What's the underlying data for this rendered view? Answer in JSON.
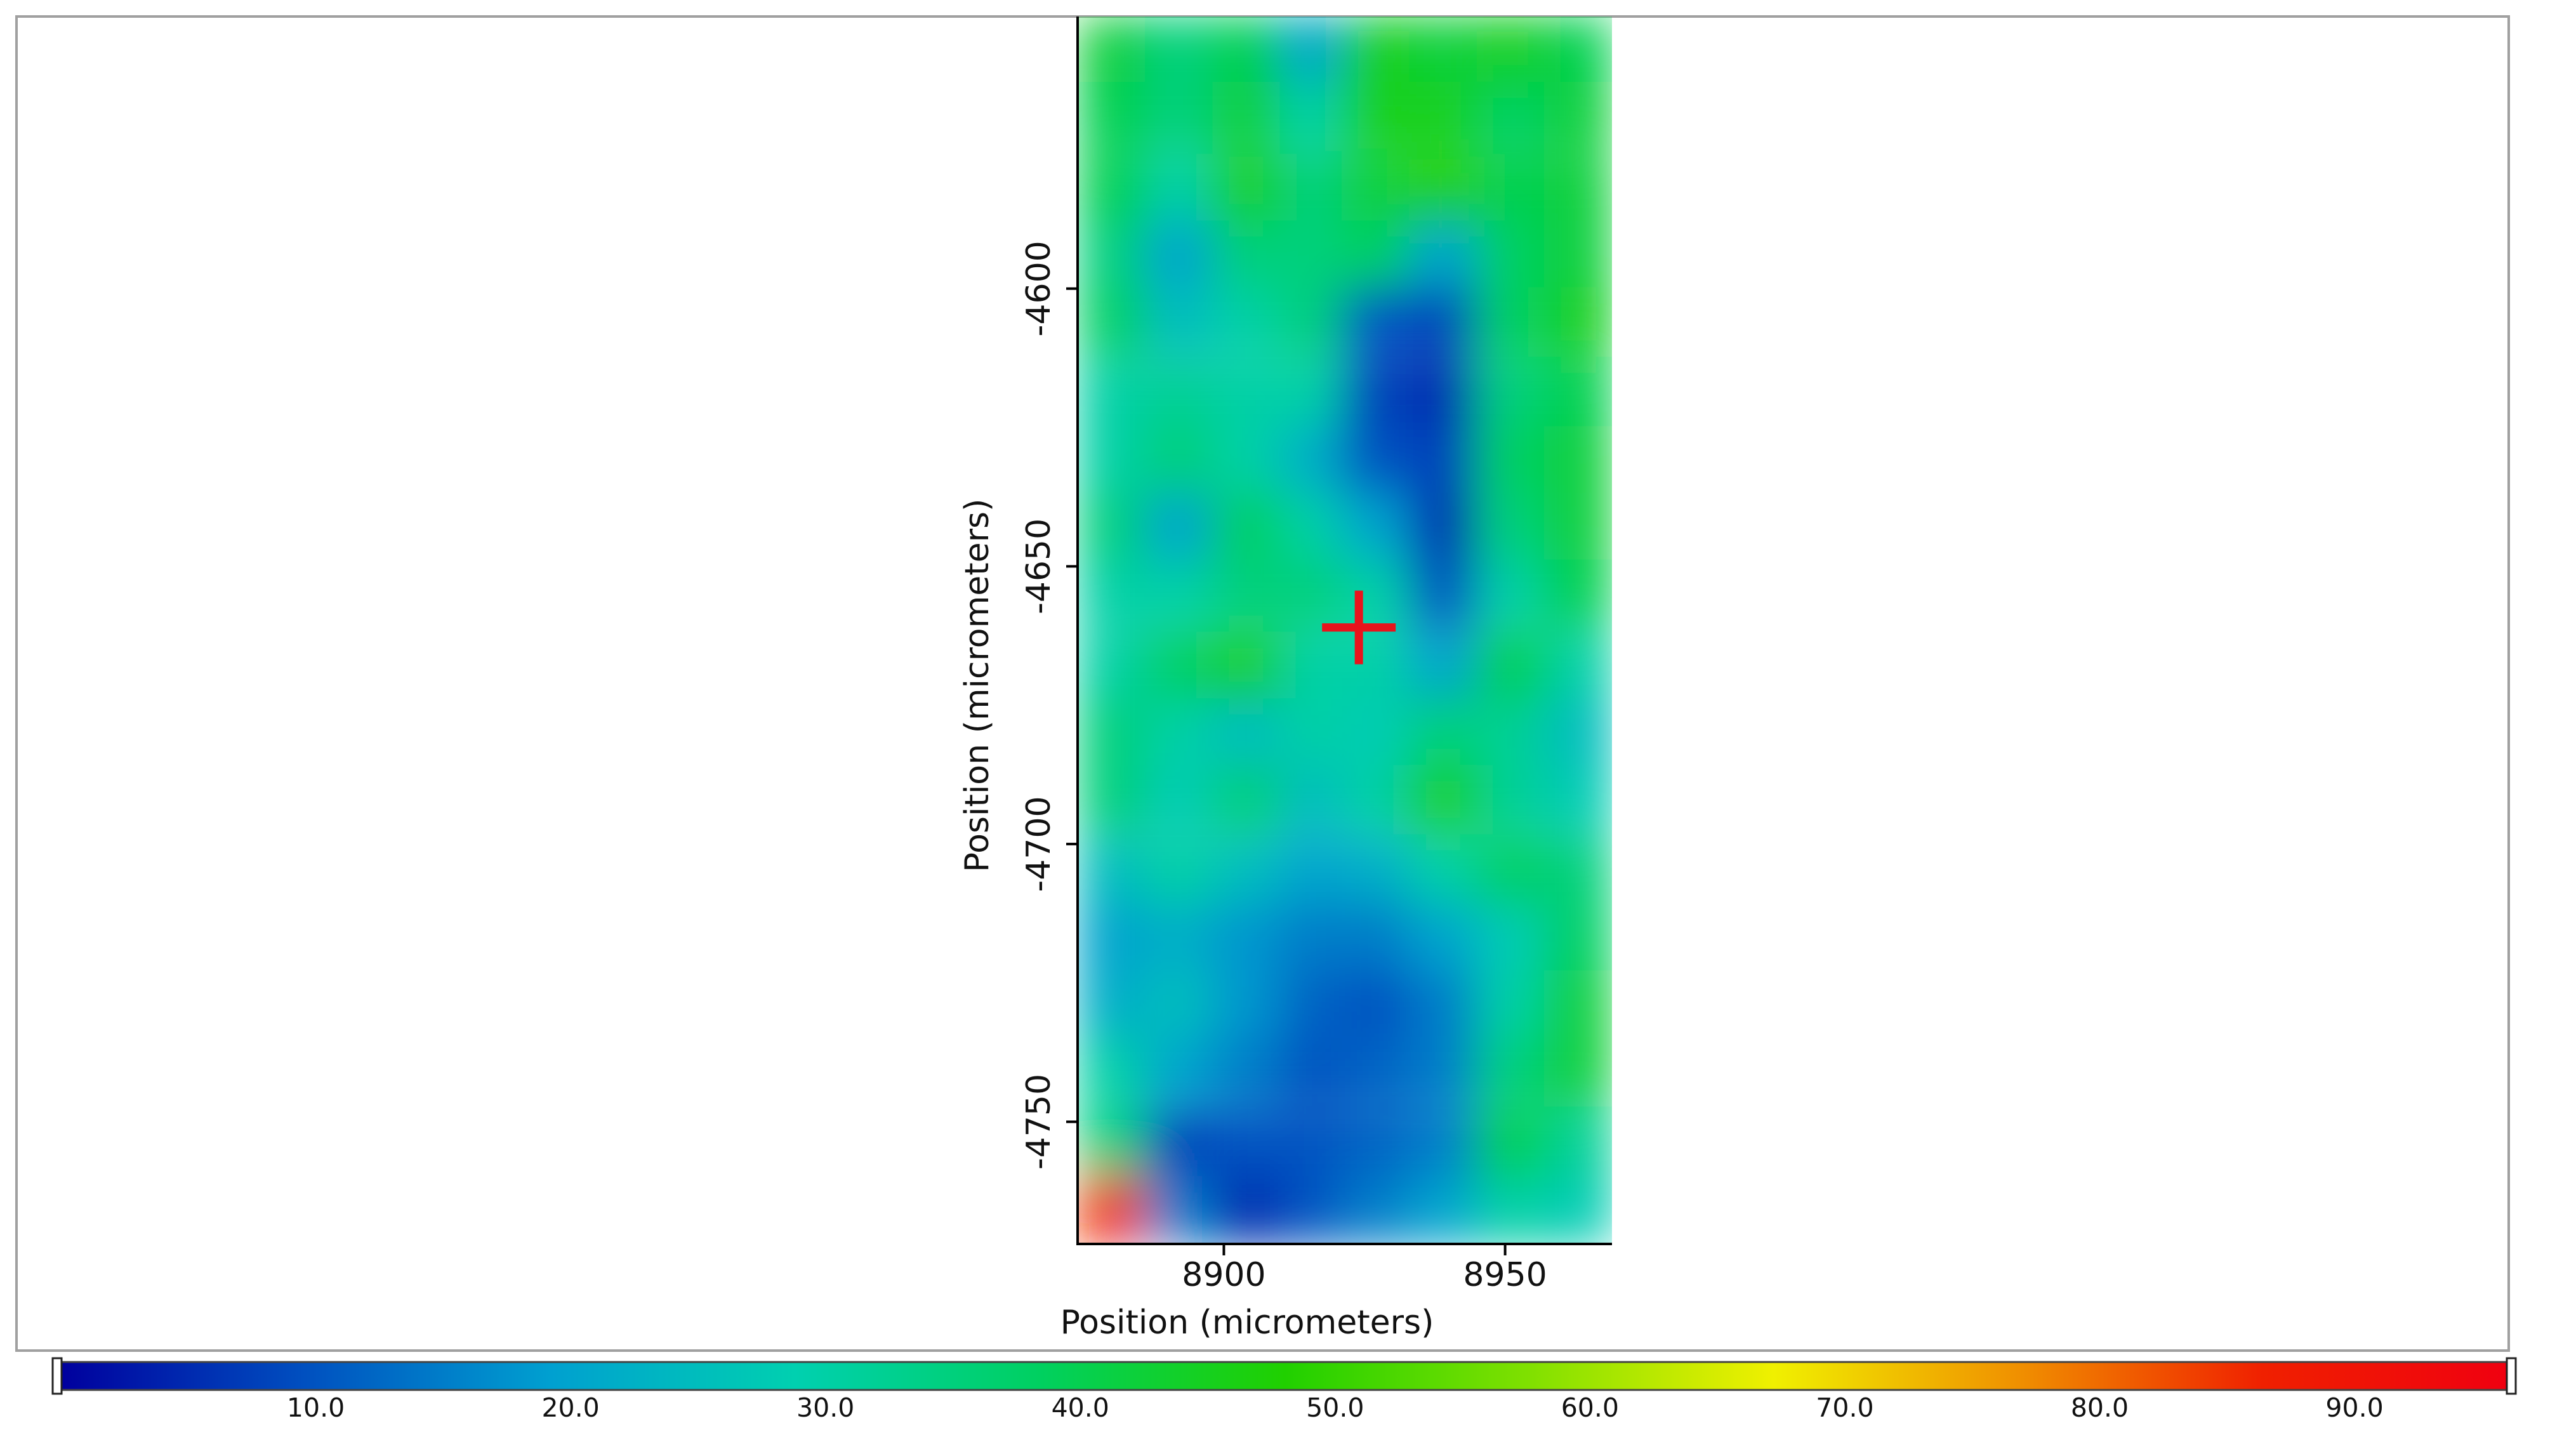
{
  "chart_data": {
    "type": "heatmap",
    "xlabel": "Position (micrometers)",
    "ylabel": "Position (micrometers)",
    "xlim": [
      8874,
      8969
    ],
    "ylim": [
      -4772,
      -4551
    ],
    "xticks": [
      8900,
      8950
    ],
    "yticks": [
      -4600,
      -4650,
      -4700,
      -4750
    ],
    "x": [
      8880,
      8892,
      8904,
      8916,
      8927,
      8939,
      8951,
      8963
    ],
    "y": [
      -4557,
      -4569,
      -4582,
      -4594,
      -4606,
      -4619,
      -4631,
      -4643,
      -4655,
      -4668,
      -4680,
      -4692,
      -4705,
      -4717,
      -4729,
      -4741,
      -4754,
      -4766
    ],
    "z": [
      [
        42,
        35,
        40,
        20,
        45,
        42,
        45,
        40
      ],
      [
        40,
        35,
        42,
        30,
        45,
        45,
        38,
        42
      ],
      [
        40,
        30,
        45,
        35,
        42,
        48,
        40,
        42
      ],
      [
        35,
        20,
        35,
        35,
        38,
        20,
        38,
        42
      ],
      [
        38,
        25,
        30,
        35,
        10,
        8,
        38,
        45
      ],
      [
        30,
        32,
        30,
        30,
        8,
        5,
        35,
        40
      ],
      [
        30,
        35,
        30,
        22,
        10,
        8,
        38,
        42
      ],
      [
        35,
        20,
        38,
        30,
        20,
        5,
        35,
        42
      ],
      [
        30,
        30,
        35,
        35,
        30,
        10,
        30,
        40
      ],
      [
        30,
        38,
        45,
        30,
        30,
        20,
        40,
        30
      ],
      [
        35,
        30,
        25,
        30,
        28,
        35,
        32,
        25
      ],
      [
        35,
        28,
        35,
        25,
        30,
        45,
        32,
        28
      ],
      [
        25,
        30,
        25,
        20,
        22,
        30,
        38,
        35
      ],
      [
        20,
        22,
        18,
        15,
        15,
        20,
        28,
        38
      ],
      [
        22,
        25,
        18,
        12,
        10,
        15,
        30,
        42
      ],
      [
        30,
        20,
        15,
        10,
        12,
        15,
        35,
        42
      ],
      [
        35,
        8,
        10,
        10,
        12,
        15,
        40,
        32
      ],
      [
        85,
        15,
        5,
        10,
        15,
        20,
        30,
        28
      ]
    ],
    "marker": {
      "x": 8924,
      "y": -4661,
      "color": "#e8141c"
    },
    "colormap": [
      "#00009e",
      "#0050c0",
      "#00a0d0",
      "#00d0b0",
      "#00d060",
      "#20d000",
      "#80e000",
      "#f0f000",
      "#f09000",
      "#f02000",
      "#f00010"
    ],
    "clim": [
      0,
      96
    ],
    "cticks": [
      {
        "value": 10,
        "label": "10.0"
      },
      {
        "value": 20,
        "label": "20.0"
      },
      {
        "value": 30,
        "label": "30.0"
      },
      {
        "value": 40,
        "label": "40.0"
      },
      {
        "value": 50,
        "label": "50.0"
      },
      {
        "value": 60,
        "label": "60.0"
      },
      {
        "value": 70,
        "label": "70.0"
      },
      {
        "value": 80,
        "label": "80.0"
      },
      {
        "value": 90,
        "label": "90.0"
      }
    ]
  }
}
